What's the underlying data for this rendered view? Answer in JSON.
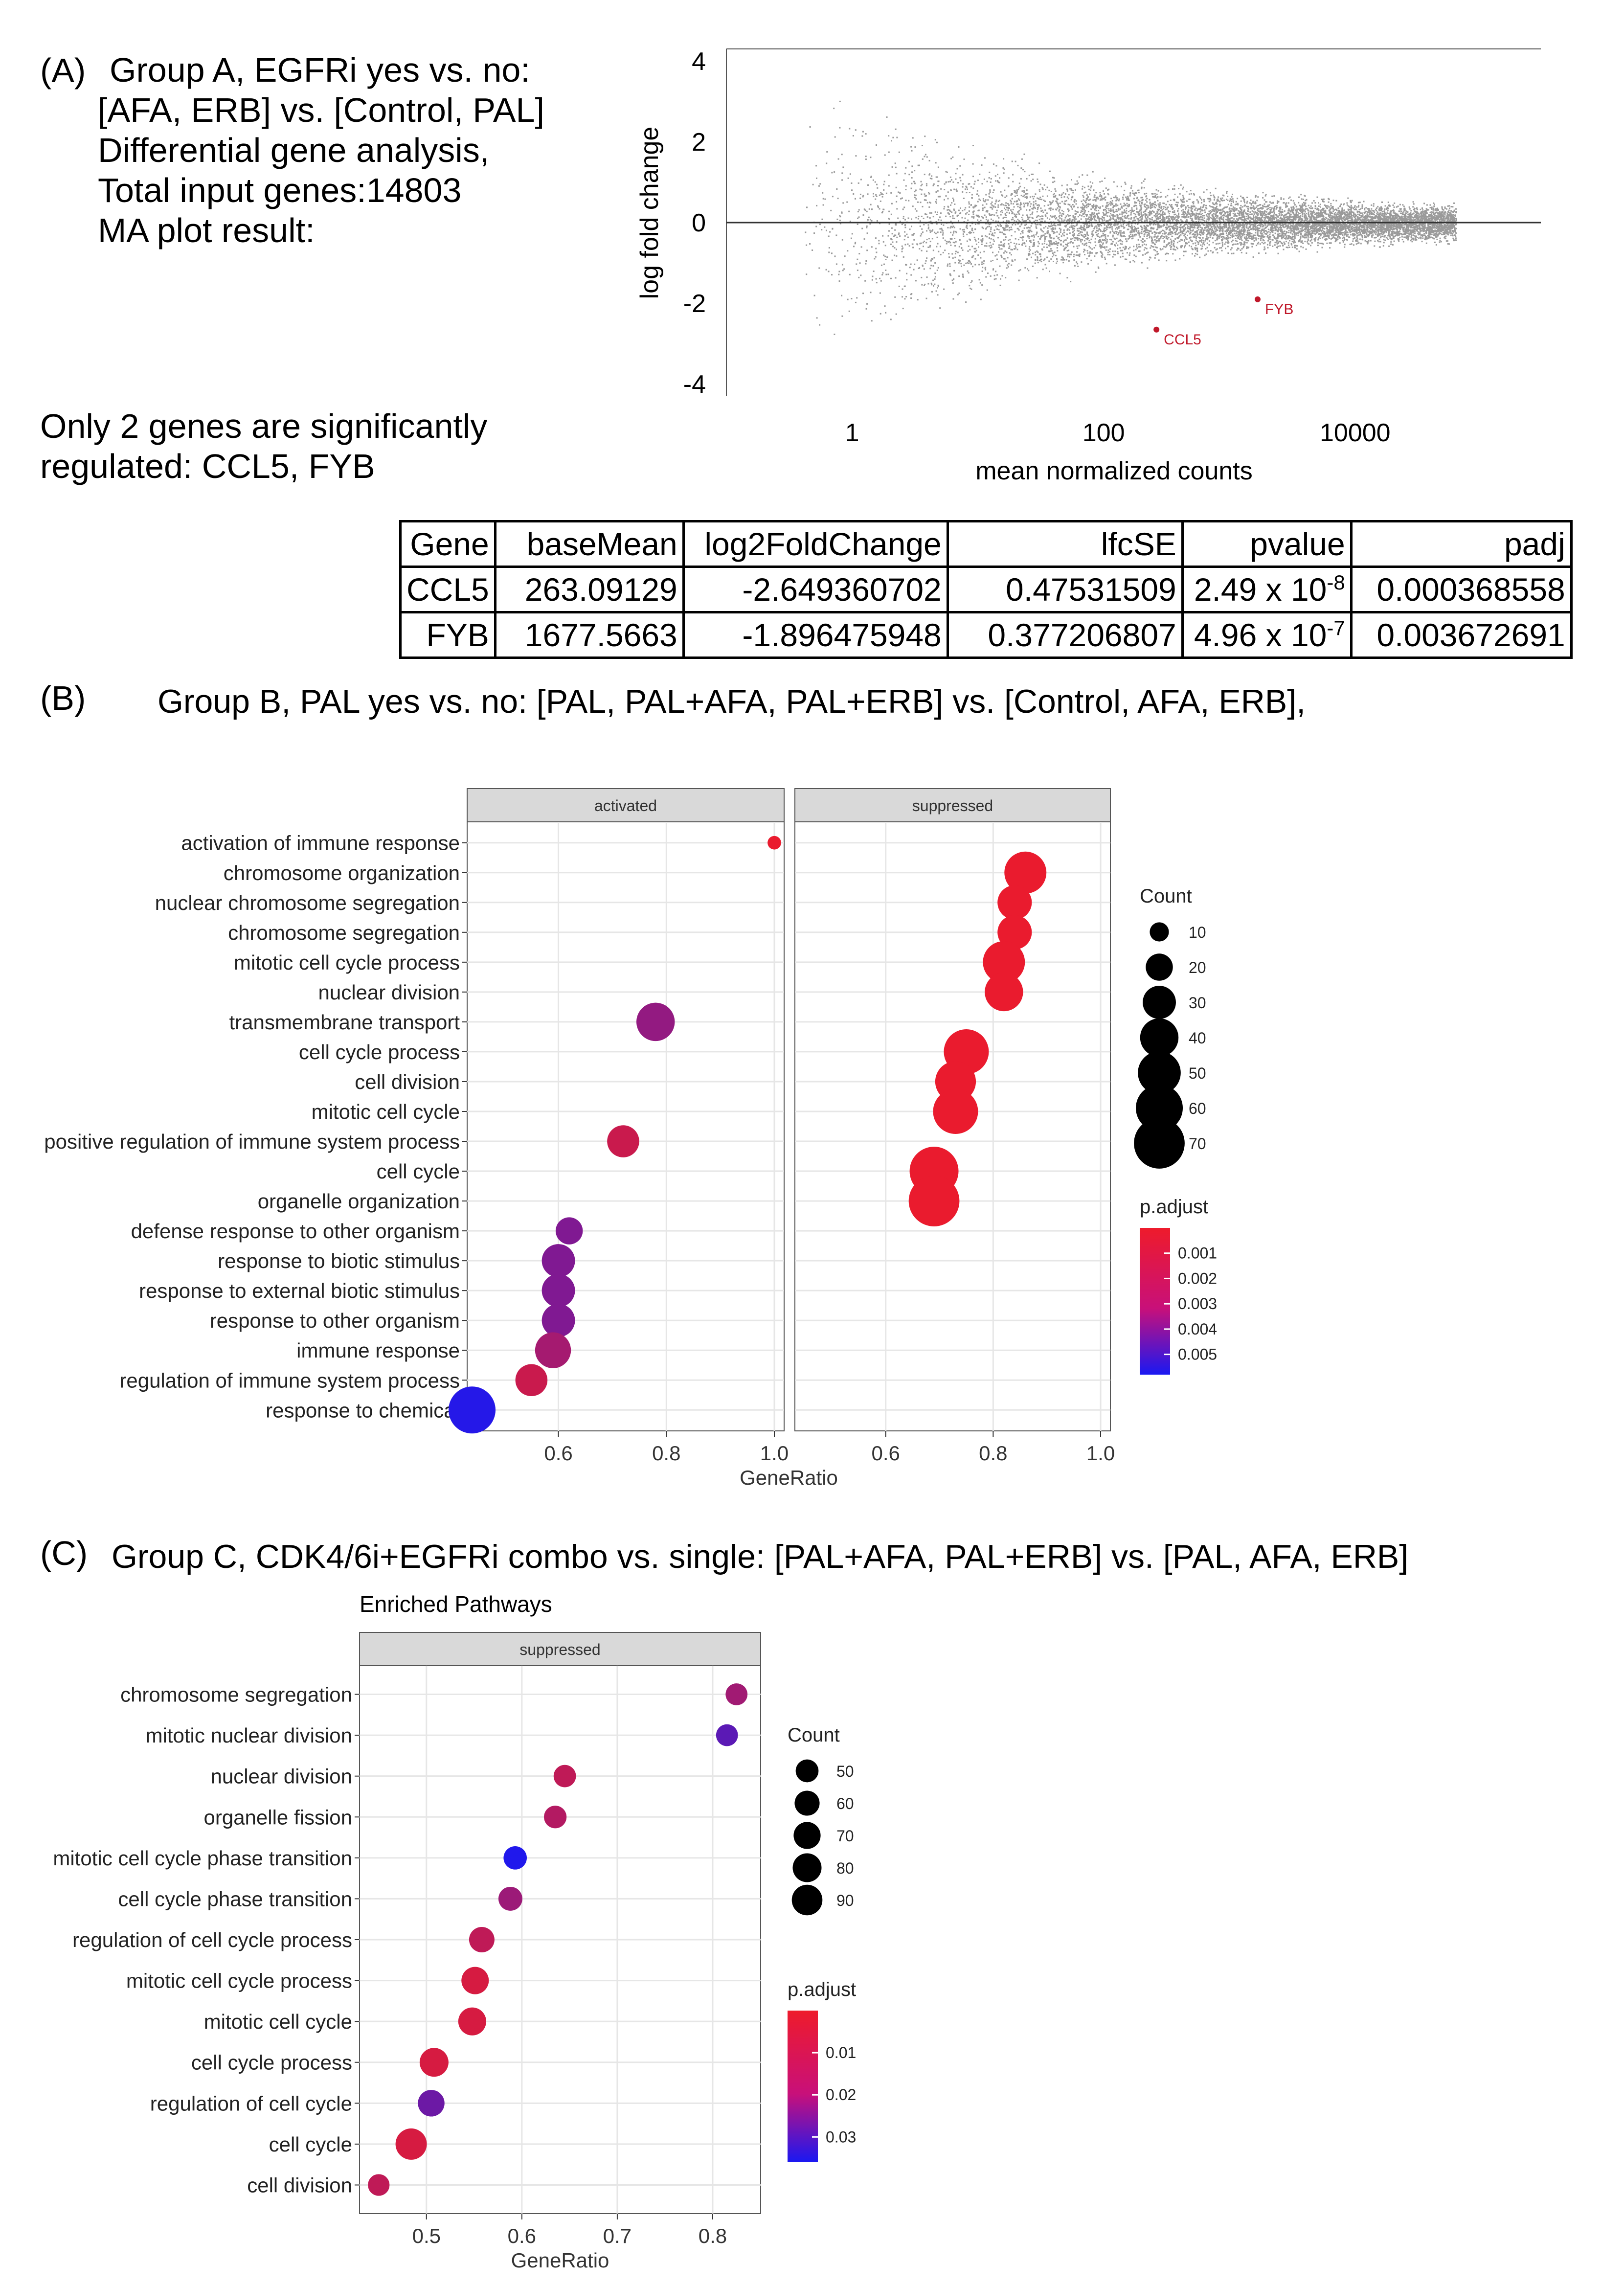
{
  "panelA": {
    "label": "(A)",
    "lines": [
      "Group A, EGFRi yes vs. no:",
      "[AFA, ERB] vs. [Control, PAL]",
      "Differential gene analysis,",
      "Total input genes:14803",
      "MA plot result:"
    ],
    "summary_lines": [
      "Only 2 genes are significantly",
      "regulated: CCL5, FYB"
    ],
    "table": {
      "headers": [
        "Gene",
        "baseMean",
        "log2FoldChange",
        "lfcSE",
        "pvalue",
        "padj"
      ],
      "rows": [
        {
          "gene": "CCL5",
          "baseMean": "263.09129",
          "log2FoldChange": "-2.649360702",
          "lfcSE": "0.47531509",
          "pvalue_base": "2.49 x 10",
          "pvalue_exp": "-8",
          "padj": "0.000368558"
        },
        {
          "gene": "FYB",
          "baseMean": "1677.5663",
          "log2FoldChange": "-1.896475948",
          "lfcSE": "0.377206807",
          "pvalue_base": "4.96 x 10",
          "pvalue_exp": "-7",
          "padj": "0.003672691"
        }
      ]
    }
  },
  "panelB": {
    "label": "(B)",
    "title": "Group B, PAL yes vs. no: [PAL, PAL+AFA, PAL+ERB] vs. [Control, AFA, ERB],"
  },
  "panelC": {
    "label": "(C)",
    "title": "Group C, CDK4/6i+EGFRi combo vs. single: [PAL+AFA, PAL+ERB] vs. [PAL, AFA, ERB]"
  },
  "colors": {
    "point_high_sig": "#ee1b2b",
    "point_low_sig": "#1a18f2",
    "ma_point": "#9a9a9a",
    "highlight": "#c0182a",
    "strip": "#d9d9d9"
  },
  "chart_data": [
    {
      "id": "ma",
      "type": "scatter",
      "xlabel": "mean normalized counts",
      "ylabel": "log fold change",
      "x_scale": "log10",
      "xlim": [
        0.1,
        300000
      ],
      "ylim": [
        -4.3,
        4.3
      ],
      "x_ticks": [
        {
          "v": 1,
          "label": "1"
        },
        {
          "v": 100,
          "label": "100"
        },
        {
          "v": 10000,
          "label": "10000"
        }
      ],
      "y_ticks": [
        4,
        2,
        0,
        -2,
        -4
      ],
      "background_points": "approx. 14803 genes (grey)",
      "highlighted": [
        {
          "label": "CCL5",
          "x": 263.09,
          "y": -2.65
        },
        {
          "label": "FYB",
          "x": 1677.57,
          "y": -1.9
        }
      ]
    },
    {
      "id": "dotB",
      "type": "scatter",
      "xlabel": "GeneRatio",
      "facets": [
        "activated",
        "suppressed"
      ],
      "xlim": [
        0.44,
        1.0
      ],
      "x_ticks": [
        {
          "v": 0.6,
          "label": "0.6"
        },
        {
          "v": 0.8,
          "label": "0.8"
        },
        {
          "v": 1.0,
          "label": "1.0"
        }
      ],
      "categories": [
        "activation of immune response",
        "chromosome organization",
        "nuclear chromosome segregation",
        "chromosome segregation",
        "mitotic cell cycle process",
        "nuclear division",
        "transmembrane transport",
        "cell cycle process",
        "cell division",
        "mitotic cell cycle",
        "positive regulation of immune system process",
        "cell cycle",
        "organelle organization",
        "defense response to other organism",
        "response to biotic stimulus",
        "response to external biotic stimulus",
        "response to other organism",
        "immune response",
        "regulation of immune system process",
        "response to chemical"
      ],
      "points": [
        {
          "facet": "activated",
          "cat": "activation of immune response",
          "x": 1.0,
          "count": 5,
          "padj": 0.0001
        },
        {
          "facet": "suppressed",
          "cat": "chromosome organization",
          "x": 0.86,
          "count": 48,
          "padj": 0.0001
        },
        {
          "facet": "suppressed",
          "cat": "nuclear chromosome segregation",
          "x": 0.84,
          "count": 32,
          "padj": 0.0001
        },
        {
          "facet": "suppressed",
          "cat": "chromosome segregation",
          "x": 0.84,
          "count": 32,
          "padj": 0.0001
        },
        {
          "facet": "suppressed",
          "cat": "mitotic cell cycle process",
          "x": 0.82,
          "count": 48,
          "padj": 0.0001
        },
        {
          "facet": "suppressed",
          "cat": "nuclear division",
          "x": 0.82,
          "count": 40,
          "padj": 0.0001
        },
        {
          "facet": "activated",
          "cat": "transmembrane transport",
          "x": 0.78,
          "count": 40,
          "padj": 0.0025
        },
        {
          "facet": "suppressed",
          "cat": "cell cycle process",
          "x": 0.75,
          "count": 55,
          "padj": 0.0001
        },
        {
          "facet": "suppressed",
          "cat": "cell division",
          "x": 0.73,
          "count": 45,
          "padj": 0.0001
        },
        {
          "facet": "suppressed",
          "cat": "mitotic cell cycle",
          "x": 0.73,
          "count": 55,
          "padj": 0.0001
        },
        {
          "facet": "activated",
          "cat": "positive regulation of immune system process",
          "x": 0.72,
          "count": 28,
          "padj": 0.001
        },
        {
          "facet": "suppressed",
          "cat": "cell cycle",
          "x": 0.69,
          "count": 65,
          "padj": 0.0001
        },
        {
          "facet": "suppressed",
          "cat": "organelle organization",
          "x": 0.69,
          "count": 70,
          "padj": 0.0001
        },
        {
          "facet": "activated",
          "cat": "defense response to other organism",
          "x": 0.62,
          "count": 20,
          "padj": 0.003
        },
        {
          "facet": "activated",
          "cat": "response to biotic stimulus",
          "x": 0.6,
          "count": 30,
          "padj": 0.003
        },
        {
          "facet": "activated",
          "cat": "response to external biotic stimulus",
          "x": 0.6,
          "count": 30,
          "padj": 0.003
        },
        {
          "facet": "activated",
          "cat": "response to other organism",
          "x": 0.6,
          "count": 30,
          "padj": 0.003
        },
        {
          "facet": "activated",
          "cat": "immune response",
          "x": 0.59,
          "count": 35,
          "padj": 0.002
        },
        {
          "facet": "activated",
          "cat": "regulation of immune system process",
          "x": 0.55,
          "count": 28,
          "padj": 0.001
        },
        {
          "facet": "activated",
          "cat": "response to chemical",
          "x": 0.44,
          "count": 60,
          "padj": 0.0055
        }
      ],
      "count_legend": {
        "title": "Count",
        "values": [
          10,
          20,
          30,
          40,
          50,
          60,
          70
        ]
      },
      "color_legend": {
        "title": "p.adjust",
        "values": [
          0.001,
          0.002,
          0.003,
          0.004,
          0.005
        ],
        "labels": [
          "0.001",
          "0.002",
          "0.003",
          "0.004",
          "0.005"
        ],
        "range": [
          0.0,
          0.0058
        ]
      }
    },
    {
      "id": "dotC",
      "type": "scatter",
      "title": "Enriched Pathways",
      "xlabel": "GeneRatio",
      "facets": [
        "suppressed"
      ],
      "xlim": [
        0.435,
        0.84
      ],
      "x_ticks": [
        {
          "v": 0.5,
          "label": "0.5"
        },
        {
          "v": 0.6,
          "label": "0.6"
        },
        {
          "v": 0.7,
          "label": "0.7"
        },
        {
          "v": 0.8,
          "label": "0.8"
        }
      ],
      "categories": [
        "chromosome segregation",
        "mitotic nuclear division",
        "nuclear division",
        "organelle fission",
        "mitotic cell cycle phase transition",
        "cell cycle phase transition",
        "regulation of cell cycle process",
        "mitotic cell cycle process",
        "mitotic cell cycle",
        "cell cycle process",
        "regulation of cell cycle",
        "cell cycle",
        "cell division"
      ],
      "points": [
        {
          "facet": "suppressed",
          "cat": "chromosome segregation",
          "x": 0.825,
          "count": 46,
          "padj": 0.013
        },
        {
          "facet": "suppressed",
          "cat": "mitotic nuclear division",
          "x": 0.815,
          "count": 46,
          "padj": 0.025
        },
        {
          "facet": "suppressed",
          "cat": "nuclear division",
          "x": 0.645,
          "count": 48,
          "padj": 0.008
        },
        {
          "facet": "suppressed",
          "cat": "organelle fission",
          "x": 0.635,
          "count": 49,
          "padj": 0.01
        },
        {
          "facet": "suppressed",
          "cat": "mitotic cell cycle phase transition",
          "x": 0.593,
          "count": 52,
          "padj": 0.035
        },
        {
          "facet": "suppressed",
          "cat": "cell cycle phase transition",
          "x": 0.588,
          "count": 55,
          "padj": 0.014
        },
        {
          "facet": "suppressed",
          "cat": "regulation of cell cycle process",
          "x": 0.558,
          "count": 62,
          "padj": 0.008
        },
        {
          "facet": "suppressed",
          "cat": "mitotic cell cycle process",
          "x": 0.551,
          "count": 72,
          "padj": 0.004
        },
        {
          "facet": "suppressed",
          "cat": "mitotic cell cycle",
          "x": 0.548,
          "count": 75,
          "padj": 0.004
        },
        {
          "facet": "suppressed",
          "cat": "cell cycle process",
          "x": 0.508,
          "count": 80,
          "padj": 0.004
        },
        {
          "facet": "suppressed",
          "cat": "regulation of cell cycle",
          "x": 0.505,
          "count": 68,
          "padj": 0.022
        },
        {
          "facet": "suppressed",
          "cat": "cell cycle",
          "x": 0.484,
          "count": 94,
          "padj": 0.004
        },
        {
          "facet": "suppressed",
          "cat": "cell division",
          "x": 0.45,
          "count": 45,
          "padj": 0.008
        }
      ],
      "count_legend": {
        "title": "Count",
        "values": [
          50,
          60,
          70,
          80,
          90
        ]
      },
      "color_legend": {
        "title": "p.adjust",
        "values": [
          0.01,
          0.02,
          0.03
        ],
        "labels": [
          "0.01",
          "0.02",
          "0.03"
        ],
        "range": [
          0.0,
          0.036
        ]
      }
    }
  ]
}
